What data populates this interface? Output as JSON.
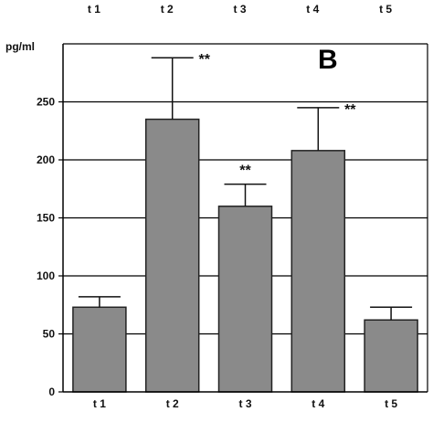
{
  "chart_data": {
    "type": "bar",
    "panel_label": "B",
    "ylabel": "pg/ml",
    "xlabel": "",
    "categories": [
      "t 1",
      "t 2",
      "t 3",
      "t 4",
      "t 5"
    ],
    "top_categories": [
      "t 1",
      "t 2",
      "t 3",
      "t 4",
      "t 5"
    ],
    "values": [
      73,
      235,
      160,
      208,
      62
    ],
    "error_upper": [
      82,
      288,
      179,
      245,
      73
    ],
    "significance": [
      "",
      "**",
      "**",
      "**",
      ""
    ],
    "ylim": [
      0,
      300
    ],
    "yticks": [
      0,
      50,
      100,
      150,
      200,
      250
    ],
    "grid": true,
    "colors": {
      "bar_fill": "#8a8a8a",
      "bar_stroke": "#222222",
      "grid": "#000000",
      "axis": "#000000"
    }
  }
}
